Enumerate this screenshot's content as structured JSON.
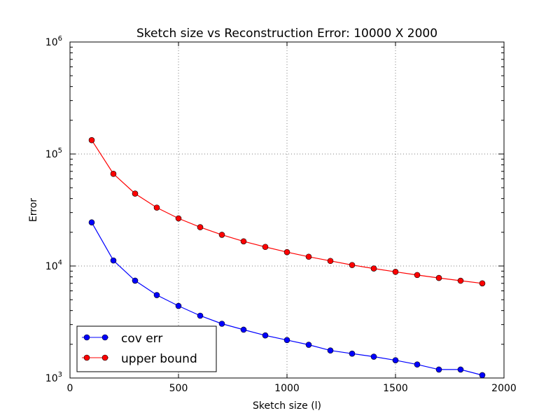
{
  "chart_data": {
    "type": "line",
    "title": "Sketch size vs Reconstruction Error: 10000 X 2000",
    "xlabel": "Sketch size (l)",
    "ylabel": "Error",
    "xlim": [
      0,
      2000
    ],
    "ylim": [
      1000,
      1000000
    ],
    "yscale": "log",
    "grid": true,
    "legend_position": "lower-left",
    "x_ticks": [
      "0",
      "500",
      "1000",
      "1500",
      "2000"
    ],
    "y_ticks": [
      {
        "base": "10",
        "exp": "3"
      },
      {
        "base": "10",
        "exp": "4"
      },
      {
        "base": "10",
        "exp": "5"
      },
      {
        "base": "10",
        "exp": "6"
      }
    ],
    "x": [
      100,
      200,
      300,
      400,
      500,
      600,
      700,
      800,
      900,
      1000,
      1100,
      1200,
      1300,
      1400,
      1500,
      1600,
      1700,
      1800,
      1900
    ],
    "series": [
      {
        "name": "cov err",
        "color": "#0000ff",
        "values": [
          24500,
          11200,
          7400,
          5500,
          4400,
          3600,
          3050,
          2700,
          2400,
          2180,
          1980,
          1760,
          1650,
          1550,
          1440,
          1320,
          1190,
          1190,
          1060
        ]
      },
      {
        "name": "upper bound",
        "color": "#ff0000",
        "values": [
          133000,
          66500,
          44300,
          33200,
          26600,
          22200,
          19000,
          16600,
          14800,
          13300,
          12100,
          11100,
          10200,
          9500,
          8870,
          8310,
          7820,
          7390,
          7000
        ]
      }
    ]
  }
}
